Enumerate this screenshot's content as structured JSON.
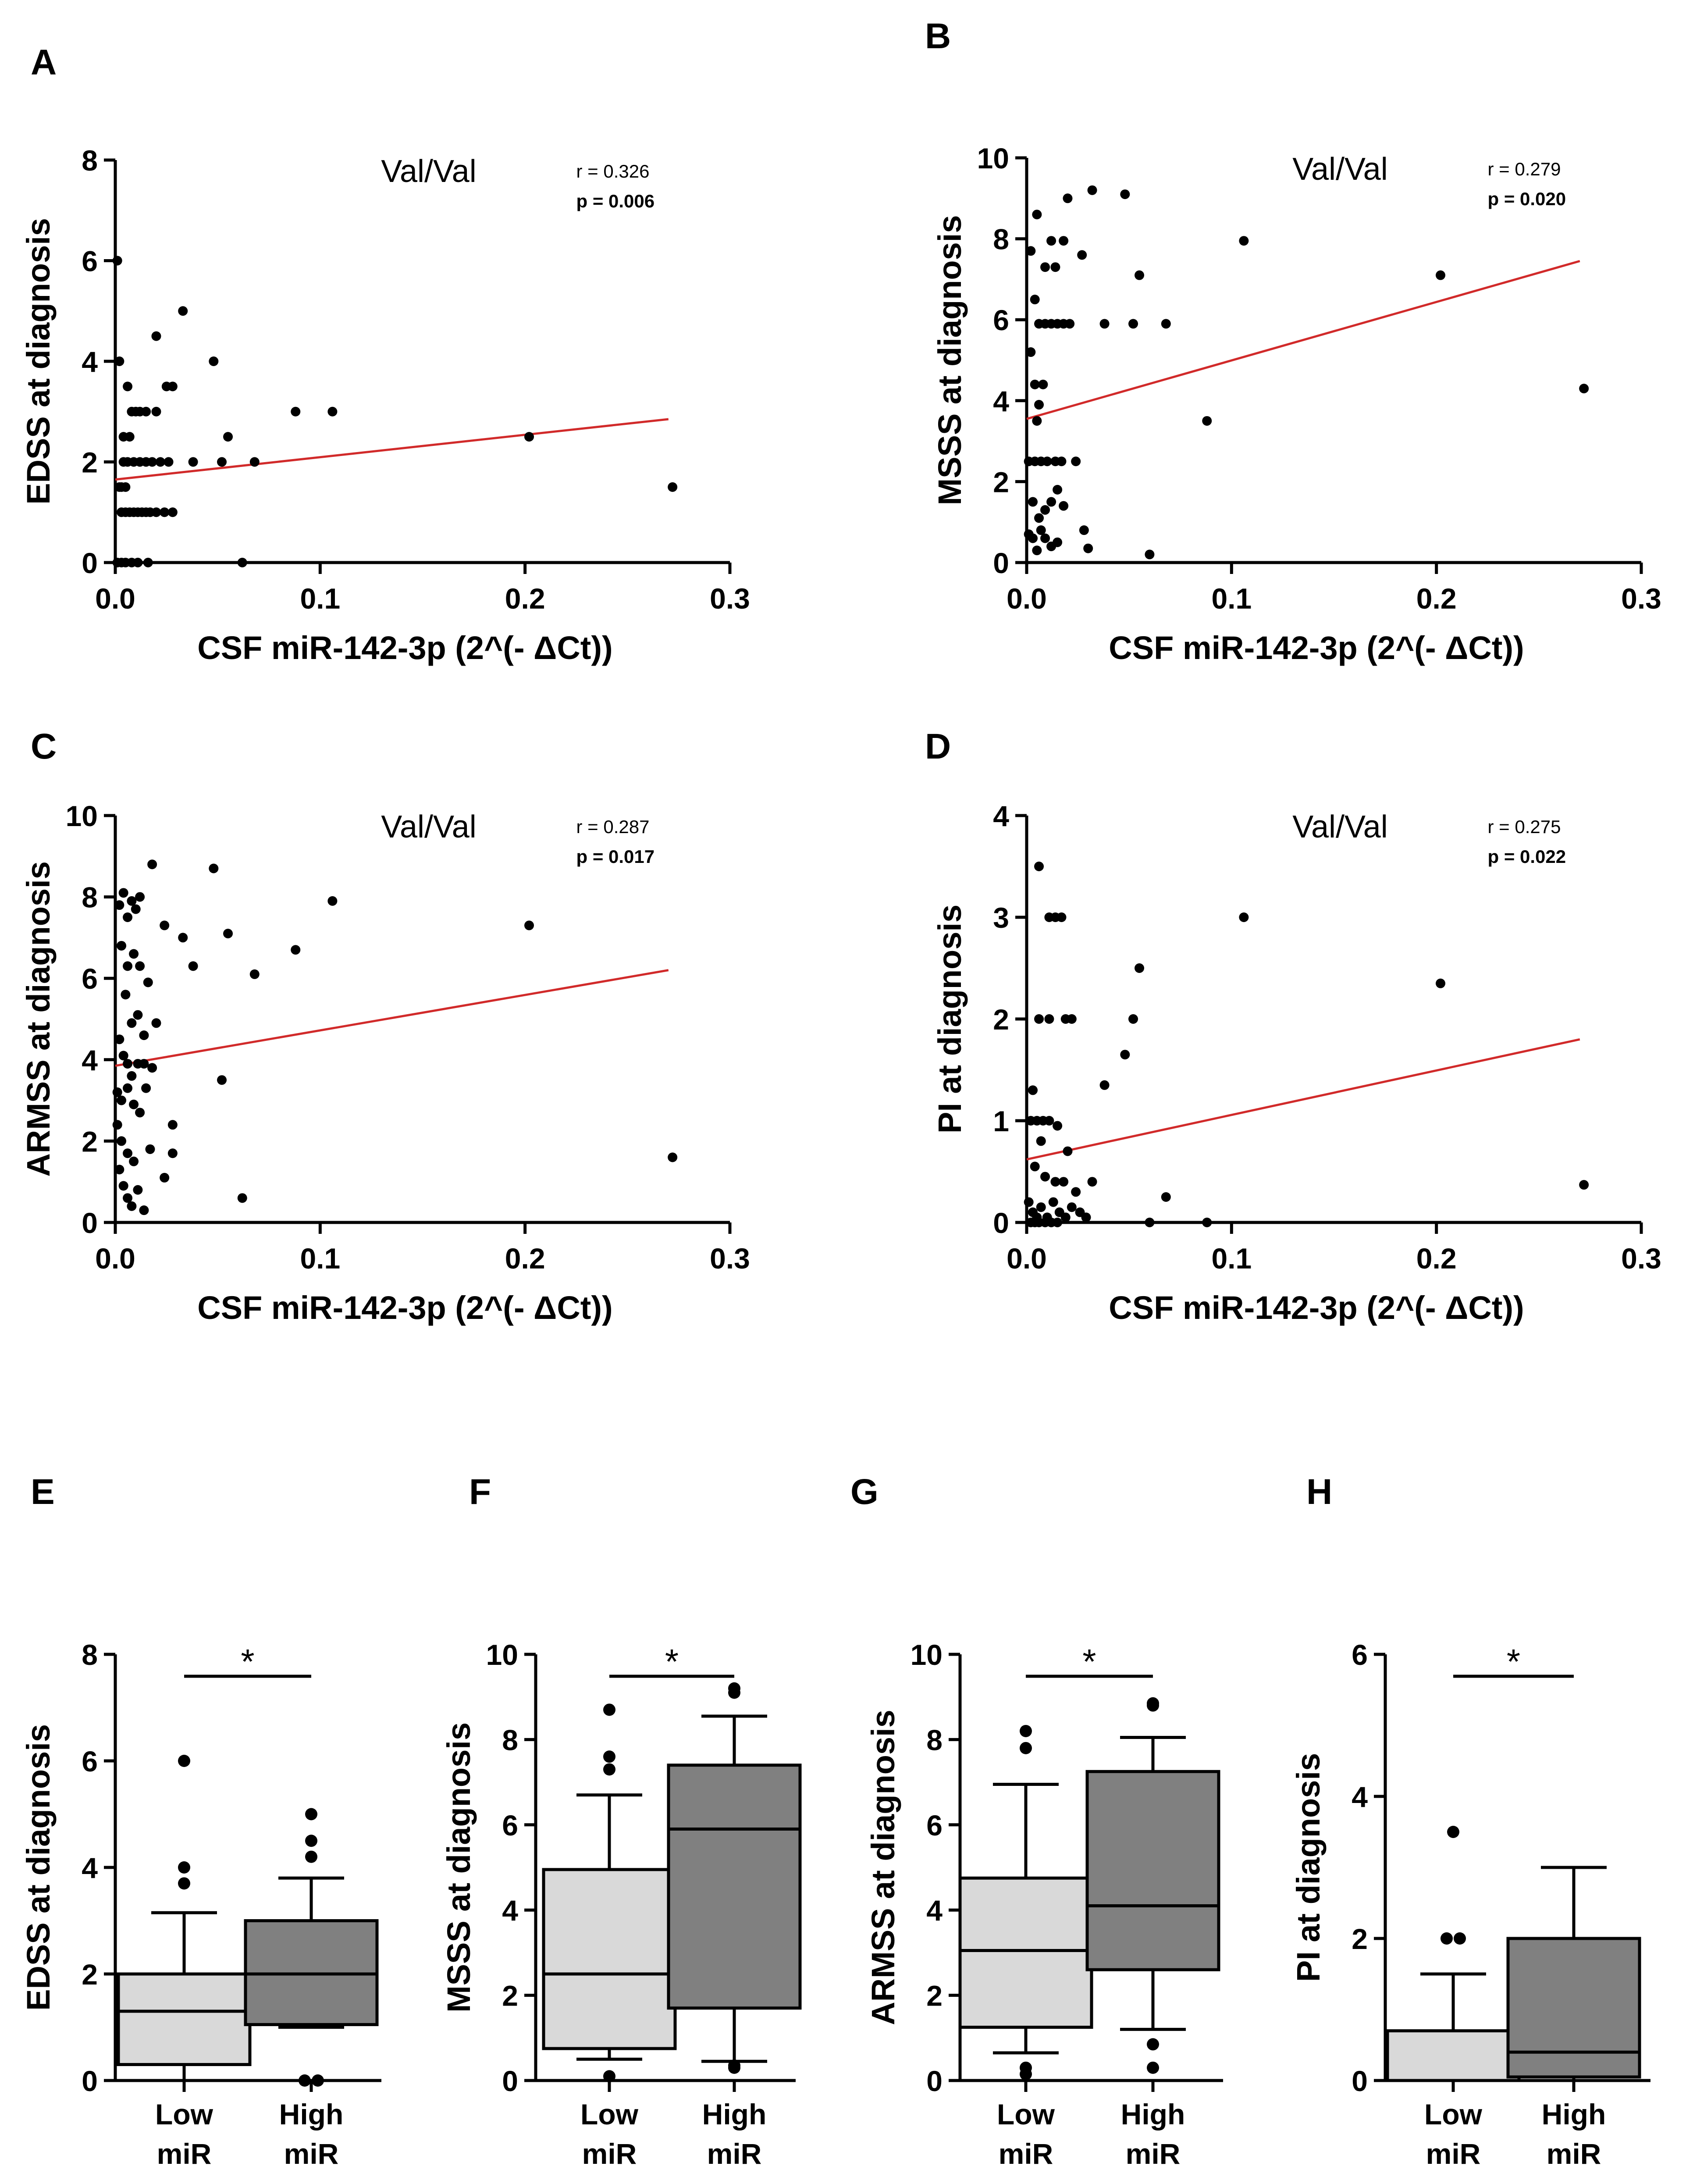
{
  "colors": {
    "axis": "#000000",
    "point": "#000000",
    "trend": "#d12a2a",
    "box_low": "#d9d9d9",
    "box_high": "#808080"
  },
  "chart_data": [
    {
      "panel": "A",
      "type": "scatter",
      "annotation": "Val/Val",
      "r_text": "r = 0.326",
      "p_text": "p = 0.006",
      "xlabel": "CSF miR-142-3p (2^(- ΔCt))",
      "ylabel": "EDSS at diagnosis",
      "xlim": [
        0,
        0.3
      ],
      "ylim": [
        0,
        8
      ],
      "xticks": [
        "0.0",
        "0.1",
        "0.2",
        "0.3"
      ],
      "yticks": [
        "0",
        "2",
        "4",
        "6",
        "8"
      ],
      "trend": {
        "x": [
          0,
          0.27
        ],
        "y": [
          1.65,
          2.85
        ]
      },
      "points": [
        [
          0.001,
          6
        ],
        [
          0.002,
          4
        ],
        [
          0.003,
          1.5
        ],
        [
          0.005,
          1.5
        ],
        [
          0.006,
          3.5
        ],
        [
          0.007,
          2.5
        ],
        [
          0.008,
          3
        ],
        [
          0.01,
          3
        ],
        [
          0.012,
          3
        ],
        [
          0.015,
          3
        ],
        [
          0.02,
          3
        ],
        [
          0.02,
          4.5
        ],
        [
          0.025,
          3.5
        ],
        [
          0.028,
          3.5
        ],
        [
          0.033,
          5
        ],
        [
          0.048,
          4
        ],
        [
          0.052,
          2
        ],
        [
          0.055,
          2.5
        ],
        [
          0.068,
          2
        ],
        [
          0.088,
          3
        ],
        [
          0.106,
          3
        ],
        [
          0.202,
          2.5
        ],
        [
          0.272,
          1.5
        ],
        [
          0.004,
          2
        ],
        [
          0.006,
          2
        ],
        [
          0.009,
          2
        ],
        [
          0.012,
          2
        ],
        [
          0.015,
          2
        ],
        [
          0.018,
          2
        ],
        [
          0.022,
          2
        ],
        [
          0.026,
          2
        ],
        [
          0.038,
          2
        ],
        [
          0.003,
          1
        ],
        [
          0.005,
          1
        ],
        [
          0.007,
          1
        ],
        [
          0.009,
          1
        ],
        [
          0.011,
          1
        ],
        [
          0.013,
          1
        ],
        [
          0.015,
          1
        ],
        [
          0.017,
          1
        ],
        [
          0.02,
          1
        ],
        [
          0.024,
          1
        ],
        [
          0.028,
          1
        ],
        [
          0.001,
          0
        ],
        [
          0.003,
          0
        ],
        [
          0.005,
          0
        ],
        [
          0.008,
          0
        ],
        [
          0.011,
          0
        ],
        [
          0.016,
          0
        ],
        [
          0.062,
          0
        ],
        [
          0.002,
          1.5
        ],
        [
          0.004,
          2.5
        ]
      ]
    },
    {
      "panel": "B",
      "type": "scatter",
      "annotation": "Val/Val",
      "r_text": "r = 0.279",
      "p_text": "p = 0.020",
      "xlabel": "CSF miR-142-3p (2^(- ΔCt))",
      "ylabel": "MSSS at diagnosis",
      "xlim": [
        0,
        0.3
      ],
      "ylim": [
        0,
        10
      ],
      "xticks": [
        "0.0",
        "0.1",
        "0.2",
        "0.3"
      ],
      "yticks": [
        "0",
        "2",
        "4",
        "6",
        "8",
        "10"
      ],
      "trend": {
        "x": [
          0,
          0.27
        ],
        "y": [
          3.55,
          7.45
        ]
      },
      "points": [
        [
          0.002,
          7.7
        ],
        [
          0.005,
          8.6
        ],
        [
          0.009,
          7.3
        ],
        [
          0.012,
          7.95
        ],
        [
          0.014,
          7.3
        ],
        [
          0.018,
          7.95
        ],
        [
          0.02,
          9
        ],
        [
          0.027,
          7.6
        ],
        [
          0.032,
          9.2
        ],
        [
          0.048,
          9.1
        ],
        [
          0.055,
          7.1
        ],
        [
          0.106,
          7.95
        ],
        [
          0.202,
          7.1
        ],
        [
          0.004,
          6.5
        ],
        [
          0.006,
          5.9
        ],
        [
          0.009,
          5.9
        ],
        [
          0.012,
          5.9
        ],
        [
          0.015,
          5.9
        ],
        [
          0.018,
          5.9
        ],
        [
          0.021,
          5.9
        ],
        [
          0.038,
          5.9
        ],
        [
          0.052,
          5.9
        ],
        [
          0.068,
          5.9
        ],
        [
          0.002,
          5.2
        ],
        [
          0.004,
          4.4
        ],
        [
          0.006,
          3.9
        ],
        [
          0.008,
          4.4
        ],
        [
          0.005,
          3.5
        ],
        [
          0.001,
          2.5
        ],
        [
          0.004,
          2.5
        ],
        [
          0.007,
          2.5
        ],
        [
          0.01,
          2.5
        ],
        [
          0.014,
          2.5
        ],
        [
          0.017,
          2.5
        ],
        [
          0.024,
          2.5
        ],
        [
          0.088,
          3.5
        ],
        [
          0.272,
          4.3
        ],
        [
          0.003,
          1.5
        ],
        [
          0.006,
          1.1
        ],
        [
          0.009,
          1.3
        ],
        [
          0.012,
          1.5
        ],
        [
          0.015,
          1.8
        ],
        [
          0.018,
          1.4
        ],
        [
          0.001,
          0.7
        ],
        [
          0.003,
          0.6
        ],
        [
          0.005,
          0.3
        ],
        [
          0.007,
          0.8
        ],
        [
          0.009,
          0.6
        ],
        [
          0.012,
          0.4
        ],
        [
          0.015,
          0.5
        ],
        [
          0.028,
          0.8
        ],
        [
          0.03,
          0.35
        ],
        [
          0.06,
          0.2
        ]
      ]
    },
    {
      "panel": "C",
      "type": "scatter",
      "annotation": "Val/Val",
      "r_text": "r = 0.287",
      "p_text": "p = 0.017",
      "xlabel": "CSF miR-142-3p (2^(- ΔCt))",
      "ylabel": "ARMSS at diagnosis",
      "xlim": [
        0,
        0.3
      ],
      "ylim": [
        0,
        10
      ],
      "xticks": [
        "0.0",
        "0.1",
        "0.2",
        "0.3"
      ],
      "yticks": [
        "0",
        "2",
        "4",
        "6",
        "8",
        "10"
      ],
      "trend": {
        "x": [
          0,
          0.27
        ],
        "y": [
          3.85,
          6.2
        ]
      },
      "points": [
        [
          0.002,
          7.8
        ],
        [
          0.004,
          8.1
        ],
        [
          0.006,
          7.5
        ],
        [
          0.008,
          7.9
        ],
        [
          0.01,
          7.7
        ],
        [
          0.012,
          8
        ],
        [
          0.018,
          8.8
        ],
        [
          0.024,
          7.3
        ],
        [
          0.033,
          7
        ],
        [
          0.048,
          8.7
        ],
        [
          0.055,
          7.1
        ],
        [
          0.106,
          7.9
        ],
        [
          0.202,
          7.3
        ],
        [
          0.003,
          6.8
        ],
        [
          0.006,
          6.3
        ],
        [
          0.009,
          6.6
        ],
        [
          0.012,
          6.3
        ],
        [
          0.016,
          5.9
        ],
        [
          0.038,
          6.3
        ],
        [
          0.068,
          6.1
        ],
        [
          0.088,
          6.7
        ],
        [
          0.005,
          5.6
        ],
        [
          0.008,
          4.9
        ],
        [
          0.011,
          5.1
        ],
        [
          0.014,
          4.6
        ],
        [
          0.02,
          4.9
        ],
        [
          0.002,
          4.5
        ],
        [
          0.004,
          4.1
        ],
        [
          0.006,
          3.9
        ],
        [
          0.008,
          3.6
        ],
        [
          0.011,
          3.9
        ],
        [
          0.014,
          3.9
        ],
        [
          0.018,
          3.8
        ],
        [
          0.052,
          3.5
        ],
        [
          0.001,
          3.2
        ],
        [
          0.003,
          3
        ],
        [
          0.006,
          3.3
        ],
        [
          0.009,
          2.9
        ],
        [
          0.012,
          2.7
        ],
        [
          0.015,
          3.3
        ],
        [
          0.001,
          2.4
        ],
        [
          0.003,
          2
        ],
        [
          0.006,
          1.7
        ],
        [
          0.009,
          1.5
        ],
        [
          0.017,
          1.8
        ],
        [
          0.028,
          1.7
        ],
        [
          0.028,
          2.4
        ],
        [
          0.024,
          1.1
        ],
        [
          0.002,
          1.3
        ],
        [
          0.004,
          0.9
        ],
        [
          0.006,
          0.6
        ],
        [
          0.008,
          0.4
        ],
        [
          0.011,
          0.8
        ],
        [
          0.014,
          0.3
        ],
        [
          0.062,
          0.6
        ],
        [
          0.272,
          1.6
        ]
      ]
    },
    {
      "panel": "D",
      "type": "scatter",
      "annotation": "Val/Val",
      "r_text": "r = 0.275",
      "p_text": "p = 0.022",
      "xlabel": "CSF miR-142-3p (2^(- ΔCt))",
      "ylabel": "PI at diagnosis",
      "xlim": [
        0,
        0.3
      ],
      "ylim": [
        0,
        4
      ],
      "xticks": [
        "0.0",
        "0.1",
        "0.2",
        "0.3"
      ],
      "yticks": [
        "0",
        "1",
        "2",
        "3",
        "4"
      ],
      "trend": {
        "x": [
          0,
          0.27
        ],
        "y": [
          0.62,
          1.8
        ]
      },
      "points": [
        [
          0.006,
          3.5
        ],
        [
          0.011,
          3
        ],
        [
          0.014,
          3
        ],
        [
          0.017,
          3
        ],
        [
          0.106,
          3
        ],
        [
          0.055,
          2.5
        ],
        [
          0.202,
          2.35
        ],
        [
          0.006,
          2
        ],
        [
          0.011,
          2
        ],
        [
          0.019,
          2
        ],
        [
          0.022,
          2
        ],
        [
          0.052,
          2
        ],
        [
          0.048,
          1.65
        ],
        [
          0.038,
          1.35
        ],
        [
          0.003,
          1.3
        ],
        [
          0.002,
          1
        ],
        [
          0.005,
          1
        ],
        [
          0.008,
          1
        ],
        [
          0.011,
          1
        ],
        [
          0.015,
          0.95
        ],
        [
          0.007,
          0.8
        ],
        [
          0.02,
          0.7
        ],
        [
          0.004,
          0.55
        ],
        [
          0.009,
          0.45
        ],
        [
          0.014,
          0.4
        ],
        [
          0.018,
          0.4
        ],
        [
          0.024,
          0.3
        ],
        [
          0.032,
          0.4
        ],
        [
          0.068,
          0.25
        ],
        [
          0.272,
          0.37
        ],
        [
          0.001,
          0.2
        ],
        [
          0.003,
          0.1
        ],
        [
          0.005,
          0.05
        ],
        [
          0.007,
          0.15
        ],
        [
          0.01,
          0.05
        ],
        [
          0.013,
          0.2
        ],
        [
          0.016,
          0.1
        ],
        [
          0.019,
          0.05
        ],
        [
          0.022,
          0.15
        ],
        [
          0.026,
          0.1
        ],
        [
          0.029,
          0.05
        ],
        [
          0.002,
          0
        ],
        [
          0.004,
          0
        ],
        [
          0.006,
          0
        ],
        [
          0.009,
          0
        ],
        [
          0.012,
          0
        ],
        [
          0.015,
          0
        ],
        [
          0.06,
          0
        ],
        [
          0.088,
          0
        ]
      ]
    },
    {
      "panel": "E",
      "type": "box",
      "ylabel": "EDSS at diagnosis",
      "ylim": [
        0,
        8
      ],
      "yticks": [
        "0",
        "2",
        "4",
        "6",
        "8"
      ],
      "significance": "*",
      "groups": [
        {
          "label_line1": "Low",
          "label_line2": "miR",
          "whisker_low": 0,
          "q1": 0.3,
          "median": 1.3,
          "q3": 2,
          "whisker_high": 3.15,
          "outliers": [
            3.7,
            4,
            6
          ]
        },
        {
          "label_line1": "High",
          "label_line2": "miR",
          "whisker_low": 1,
          "q1": 1.05,
          "median": 2,
          "q3": 3,
          "whisker_high": 3.8,
          "outliers": [
            4.2,
            4.5,
            5,
            0,
            0
          ]
        }
      ]
    },
    {
      "panel": "F",
      "type": "box",
      "ylabel": "MSSS at diagnosis",
      "ylim": [
        0,
        10
      ],
      "yticks": [
        "0",
        "2",
        "4",
        "6",
        "8",
        "10"
      ],
      "significance": "*",
      "groups": [
        {
          "label_line1": "Low",
          "label_line2": "miR",
          "whisker_low": 0.5,
          "q1": 0.75,
          "median": 2.5,
          "q3": 4.95,
          "whisker_high": 6.7,
          "outliers": [
            0.1,
            7.3,
            7.6,
            8.7
          ]
        },
        {
          "label_line1": "High",
          "label_line2": "miR",
          "whisker_low": 0.45,
          "q1": 1.7,
          "median": 5.9,
          "q3": 7.4,
          "whisker_high": 8.55,
          "outliers": [
            9.1,
            9.2,
            0.3,
            0.35
          ]
        }
      ]
    },
    {
      "panel": "G",
      "type": "box",
      "ylabel": "ARMSS at diagnosis",
      "ylim": [
        0,
        10
      ],
      "yticks": [
        "0",
        "2",
        "4",
        "6",
        "8",
        "10"
      ],
      "significance": "*",
      "groups": [
        {
          "label_line1": "Low",
          "label_line2": "miR",
          "whisker_low": 0.65,
          "q1": 1.25,
          "median": 3.05,
          "q3": 4.75,
          "whisker_high": 6.95,
          "outliers": [
            0.3,
            0.15,
            7.8,
            8.2
          ]
        },
        {
          "label_line1": "High",
          "label_line2": "miR",
          "whisker_low": 1.2,
          "q1": 2.6,
          "median": 4.1,
          "q3": 7.25,
          "whisker_high": 8.05,
          "outliers": [
            8.8,
            8.85,
            0.85,
            0.3
          ]
        }
      ]
    },
    {
      "panel": "H",
      "type": "box",
      "ylabel": "PI at diagnosis",
      "ylim": [
        0,
        6
      ],
      "yticks": [
        "0",
        "2",
        "4",
        "6"
      ],
      "significance": "*",
      "groups": [
        {
          "label_line1": "Low",
          "label_line2": "miR",
          "whisker_low": 0,
          "q1": 0,
          "median": 0,
          "q3": 0.7,
          "whisker_high": 1.5,
          "outliers": [
            2,
            2,
            3.5
          ]
        },
        {
          "label_line1": "High",
          "label_line2": "miR",
          "whisker_low": 0,
          "q1": 0.05,
          "median": 0.4,
          "q3": 2,
          "whisker_high": 3,
          "outliers": []
        }
      ]
    }
  ]
}
